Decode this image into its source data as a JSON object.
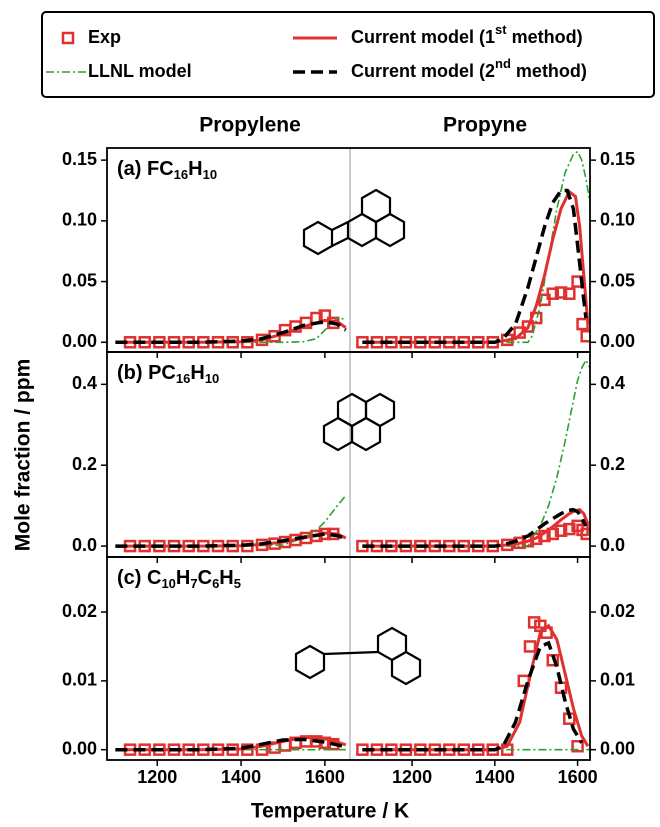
{
  "y_label": "Mole fraction / ppm",
  "x_label": "Temperature / K",
  "columns": [
    "Propylene",
    "Propyne"
  ],
  "chart_data": [
    {
      "type": "line",
      "title": "(a) FC16H10",
      "xlim": [
        1080,
        1660
      ],
      "xticks": [
        1200,
        1400,
        1600
      ],
      "ylim": [
        -0.008,
        0.16
      ],
      "yticks": [
        {
          "value": 0,
          "label": "0.00"
        },
        {
          "value": 0.05,
          "label": "0.05"
        },
        {
          "value": 0.1,
          "label": "0.10"
        },
        {
          "value": 0.15,
          "label": "0.15"
        }
      ],
      "series": [
        {
          "name": "Exp",
          "color": "#e03030",
          "style": "markers",
          "x": [
            1135,
            1170,
            1205,
            1240,
            1275,
            1310,
            1345,
            1380,
            1415,
            1450,
            1480,
            1505,
            1530,
            1555,
            1580,
            1600,
            1620
          ],
          "values": [
            0,
            0,
            0,
            0,
            0,
            0,
            0,
            0,
            0,
            0.002,
            0.005,
            0.01,
            0.013,
            0.016,
            0.02,
            0.022,
            0.016
          ]
        },
        {
          "name": "LLNL model",
          "color": "#2ca02c",
          "style": "dashdot",
          "x": [
            1100,
            1200,
            1300,
            1400,
            1500,
            1550,
            1580,
            1600,
            1630,
            1650
          ],
          "values": [
            0,
            0,
            0,
            0,
            0,
            0.0005,
            0.003,
            0.01,
            0.02,
            0.019
          ]
        },
        {
          "name": "Current model (1st method)",
          "color": "#e03030",
          "style": "solid",
          "x": [
            1100,
            1200,
            1300,
            1400,
            1450,
            1500,
            1550,
            1600,
            1630,
            1650
          ],
          "values": [
            0,
            0,
            0,
            0.0005,
            0.002,
            0.007,
            0.013,
            0.018,
            0.017,
            0.012
          ]
        },
        {
          "name": "Current model (2nd method)",
          "color": "#000000",
          "style": "dashed",
          "x": [
            1100,
            1200,
            1300,
            1400,
            1450,
            1500,
            1550,
            1600,
            1630,
            1650
          ],
          "values": [
            0,
            0,
            0,
            0.001,
            0.003,
            0.008,
            0.014,
            0.017,
            0.015,
            0.01
          ]
        }
      ]
    },
    {
      "type": "line",
      "xlim": [
        1050,
        1630
      ],
      "xticks": [
        1200,
        1400,
        1600
      ],
      "ylim": [
        -0.008,
        0.16
      ],
      "yticks": [
        {
          "value": 0,
          "label": "0.00"
        },
        {
          "value": 0.05,
          "label": "0.05"
        },
        {
          "value": 0.1,
          "label": "0.10"
        },
        {
          "value": 0.15,
          "label": "0.15"
        }
      ],
      "series": [
        {
          "name": "Exp",
          "color": "#e03030",
          "style": "markers",
          "x": [
            1080,
            1115,
            1150,
            1185,
            1220,
            1255,
            1290,
            1325,
            1360,
            1395,
            1430,
            1460,
            1480,
            1500,
            1520,
            1540,
            1560,
            1580,
            1600,
            1612,
            1622
          ],
          "values": [
            0,
            0,
            0,
            0,
            0,
            0,
            0,
            0,
            0,
            0,
            0.002,
            0.008,
            0.013,
            0.02,
            0.035,
            0.04,
            0.041,
            0.04,
            0.05,
            0.015,
            0.005
          ]
        },
        {
          "name": "LLNL model",
          "color": "#2ca02c",
          "style": "dashdot",
          "x": [
            1080,
            1200,
            1300,
            1400,
            1480,
            1490,
            1510,
            1530,
            1550,
            1570,
            1590,
            1600,
            1610,
            1620,
            1630
          ],
          "values": [
            0,
            0,
            0,
            0,
            0,
            0.005,
            0.03,
            0.07,
            0.11,
            0.14,
            0.155,
            0.157,
            0.15,
            0.135,
            0.115
          ]
        },
        {
          "name": "Current model (1st method)",
          "color": "#e03030",
          "style": "solid",
          "x": [
            1080,
            1200,
            1300,
            1400,
            1450,
            1480,
            1500,
            1520,
            1540,
            1560,
            1580,
            1595,
            1605,
            1615,
            1625
          ],
          "values": [
            0,
            0,
            0,
            0,
            0.003,
            0.012,
            0.03,
            0.055,
            0.085,
            0.11,
            0.124,
            0.12,
            0.095,
            0.055,
            0.015
          ]
        },
        {
          "name": "Current model (2nd method)",
          "color": "#000000",
          "style": "dashed",
          "x": [
            1080,
            1200,
            1300,
            1400,
            1420,
            1450,
            1480,
            1500,
            1520,
            1540,
            1560,
            1575,
            1590,
            1600,
            1610,
            1620
          ],
          "values": [
            0,
            0,
            0,
            0,
            0.003,
            0.015,
            0.045,
            0.07,
            0.095,
            0.115,
            0.125,
            0.125,
            0.11,
            0.08,
            0.05,
            0.02
          ]
        }
      ]
    },
    {
      "type": "line",
      "title": "(b) PC16H10",
      "xlim": [
        1080,
        1660
      ],
      "xticks": [
        1200,
        1400,
        1600
      ],
      "ylim": [
        -0.027,
        0.48
      ],
      "yticks": [
        {
          "value": 0,
          "label": "0.0"
        },
        {
          "value": 0.2,
          "label": "0.2"
        },
        {
          "value": 0.4,
          "label": "0.4"
        }
      ],
      "series": [
        {
          "name": "Exp",
          "color": "#e03030",
          "style": "markers",
          "x": [
            1135,
            1170,
            1205,
            1240,
            1275,
            1310,
            1345,
            1380,
            1415,
            1450,
            1480,
            1505,
            1530,
            1555,
            1580,
            1600,
            1620
          ],
          "values": [
            0,
            0,
            0,
            0,
            0,
            0,
            0,
            0,
            0,
            0.003,
            0.006,
            0.01,
            0.015,
            0.02,
            0.025,
            0.03,
            0.03
          ]
        },
        {
          "name": "LLNL model",
          "color": "#2ca02c",
          "style": "dashdot",
          "x": [
            1100,
            1200,
            1300,
            1400,
            1500,
            1550,
            1580,
            1600,
            1630,
            1650
          ],
          "values": [
            0,
            0,
            0,
            0,
            0.003,
            0.02,
            0.04,
            0.06,
            0.1,
            0.125
          ]
        },
        {
          "name": "Current model (1st method)",
          "color": "#e03030",
          "style": "solid",
          "x": [
            1100,
            1200,
            1300,
            1400,
            1450,
            1500,
            1550,
            1600,
            1630,
            1650
          ],
          "values": [
            0,
            0,
            0,
            0.001,
            0.004,
            0.01,
            0.02,
            0.032,
            0.03,
            0.02
          ]
        },
        {
          "name": "Current model (2nd method)",
          "color": "#000000",
          "style": "dashed",
          "x": [
            1100,
            1200,
            1300,
            1400,
            1450,
            1500,
            1550,
            1600,
            1630,
            1650
          ],
          "values": [
            0,
            0,
            0,
            0.002,
            0.006,
            0.013,
            0.022,
            0.03,
            0.026,
            0.018
          ]
        }
      ]
    },
    {
      "type": "line",
      "xlim": [
        1050,
        1630
      ],
      "xticks": [
        1200,
        1400,
        1600
      ],
      "ylim": [
        -0.027,
        0.48
      ],
      "yticks": [
        {
          "value": 0,
          "label": "0.0"
        },
        {
          "value": 0.2,
          "label": "0.2"
        },
        {
          "value": 0.4,
          "label": "0.4"
        }
      ],
      "series": [
        {
          "name": "Exp",
          "color": "#e03030",
          "style": "markers",
          "x": [
            1080,
            1115,
            1150,
            1185,
            1220,
            1255,
            1290,
            1325,
            1360,
            1395,
            1430,
            1460,
            1480,
            1500,
            1520,
            1540,
            1560,
            1580,
            1600,
            1612,
            1622
          ],
          "values": [
            0,
            0,
            0,
            0,
            0,
            0,
            0,
            0,
            0,
            0,
            0.003,
            0.008,
            0.012,
            0.018,
            0.025,
            0.03,
            0.038,
            0.042,
            0.05,
            0.04,
            0.03
          ]
        },
        {
          "name": "LLNL model",
          "color": "#2ca02c",
          "style": "dashdot",
          "x": [
            1080,
            1200,
            1300,
            1400,
            1480,
            1490,
            1510,
            1530,
            1550,
            1570,
            1590,
            1600,
            1610,
            1620,
            1630
          ],
          "values": [
            0,
            0,
            0,
            0,
            0,
            0.02,
            0.05,
            0.1,
            0.17,
            0.26,
            0.36,
            0.41,
            0.44,
            0.46,
            0.44
          ]
        },
        {
          "name": "Current model (1st method)",
          "color": "#e03030",
          "style": "solid",
          "x": [
            1080,
            1200,
            1300,
            1400,
            1450,
            1480,
            1500,
            1520,
            1540,
            1560,
            1580,
            1595,
            1605,
            1615,
            1625
          ],
          "values": [
            0,
            0,
            0,
            0,
            0.005,
            0.012,
            0.02,
            0.033,
            0.048,
            0.065,
            0.08,
            0.088,
            0.09,
            0.08,
            0.055
          ]
        },
        {
          "name": "Current model (2nd method)",
          "color": "#000000",
          "style": "dashed",
          "x": [
            1080,
            1200,
            1300,
            1400,
            1420,
            1450,
            1480,
            1500,
            1520,
            1540,
            1560,
            1575,
            1590,
            1600,
            1610,
            1620
          ],
          "values": [
            0,
            0,
            0,
            0,
            0.003,
            0.012,
            0.025,
            0.04,
            0.055,
            0.068,
            0.08,
            0.088,
            0.09,
            0.085,
            0.07,
            0.05
          ]
        }
      ]
    },
    {
      "type": "line",
      "title": "(c) C10H7C6H5",
      "xlim": [
        1080,
        1660
      ],
      "xticks": [
        1200,
        1400,
        1600
      ],
      "ylim": [
        -0.0015,
        0.028
      ],
      "yticks": [
        {
          "value": 0,
          "label": "0.00"
        },
        {
          "value": 0.01,
          "label": "0.01"
        },
        {
          "value": 0.02,
          "label": "0.02"
        }
      ],
      "series": [
        {
          "name": "Exp",
          "color": "#e03030",
          "style": "markers",
          "x": [
            1135,
            1170,
            1205,
            1240,
            1275,
            1310,
            1345,
            1380,
            1415,
            1450,
            1480,
            1505,
            1530,
            1555,
            1580,
            1600,
            1620
          ],
          "values": [
            0,
            0,
            0,
            0,
            0,
            0,
            0,
            0,
            0,
            0,
            0.0003,
            0.0006,
            0.001,
            0.0012,
            0.0012,
            0.001,
            0.0008
          ]
        },
        {
          "name": "LLNL model",
          "color": "#2ca02c",
          "style": "dashdot",
          "x": [
            1100,
            1200,
            1300,
            1400,
            1500,
            1550,
            1580,
            1600,
            1630,
            1650
          ],
          "values": [
            0,
            0,
            0,
            0,
            0,
            0,
            0,
            0,
            0,
            0
          ]
        },
        {
          "name": "Current model (1st method)",
          "color": "#e03030",
          "style": "solid",
          "x": [
            1100,
            1200,
            1300,
            1400,
            1450,
            1500,
            1550,
            1600,
            1630,
            1650
          ],
          "values": [
            0,
            0,
            0,
            0.0001,
            0.0005,
            0.0012,
            0.0018,
            0.0016,
            0.0011,
            0.0007
          ]
        },
        {
          "name": "Current model (2nd method)",
          "color": "#000000",
          "style": "dashed",
          "x": [
            1100,
            1200,
            1300,
            1400,
            1450,
            1500,
            1550,
            1600,
            1630,
            1650
          ],
          "values": [
            0,
            0,
            0,
            0.0002,
            0.0008,
            0.0014,
            0.0015,
            0.0011,
            0.0007,
            0.0004
          ]
        }
      ]
    },
    {
      "type": "line",
      "xlim": [
        1050,
        1630
      ],
      "xticks": [
        1200,
        1400,
        1600
      ],
      "ylim": [
        -0.0015,
        0.028
      ],
      "yticks": [
        {
          "value": 0,
          "label": "0.00"
        },
        {
          "value": 0.01,
          "label": "0.01"
        },
        {
          "value": 0.02,
          "label": "0.02"
        }
      ],
      "series": [
        {
          "name": "Exp",
          "color": "#e03030",
          "style": "markers",
          "x": [
            1080,
            1115,
            1150,
            1185,
            1220,
            1255,
            1290,
            1325,
            1360,
            1395,
            1430,
            1470,
            1485,
            1495,
            1510,
            1525,
            1540,
            1560,
            1580,
            1600
          ],
          "values": [
            0,
            0,
            0,
            0,
            0,
            0,
            0,
            0,
            0,
            0,
            0,
            0.01,
            0.015,
            0.0185,
            0.018,
            0.017,
            0.013,
            0.009,
            0.0045,
            0.0005
          ]
        },
        {
          "name": "LLNL model",
          "color": "#2ca02c",
          "style": "dashdot",
          "x": [
            1080,
            1300,
            1500,
            1630
          ],
          "values": [
            0,
            0,
            0,
            0
          ]
        },
        {
          "name": "Current model (1st method)",
          "color": "#e03030",
          "style": "solid",
          "x": [
            1080,
            1200,
            1300,
            1400,
            1430,
            1460,
            1490,
            1510,
            1530,
            1550,
            1570,
            1590,
            1610,
            1625
          ],
          "values": [
            0,
            0,
            0,
            0,
            0.0005,
            0.004,
            0.012,
            0.017,
            0.018,
            0.016,
            0.011,
            0.006,
            0.002,
            0.0005
          ]
        },
        {
          "name": "Current model (2nd method)",
          "color": "#000000",
          "style": "dashed",
          "x": [
            1080,
            1200,
            1300,
            1400,
            1420,
            1450,
            1480,
            1510,
            1530,
            1550,
            1570,
            1590,
            1610
          ],
          "values": [
            0,
            0,
            0,
            0,
            0.0005,
            0.004,
            0.01,
            0.015,
            0.0155,
            0.012,
            0.007,
            0.003,
            0.001
          ]
        }
      ]
    }
  ]
}
